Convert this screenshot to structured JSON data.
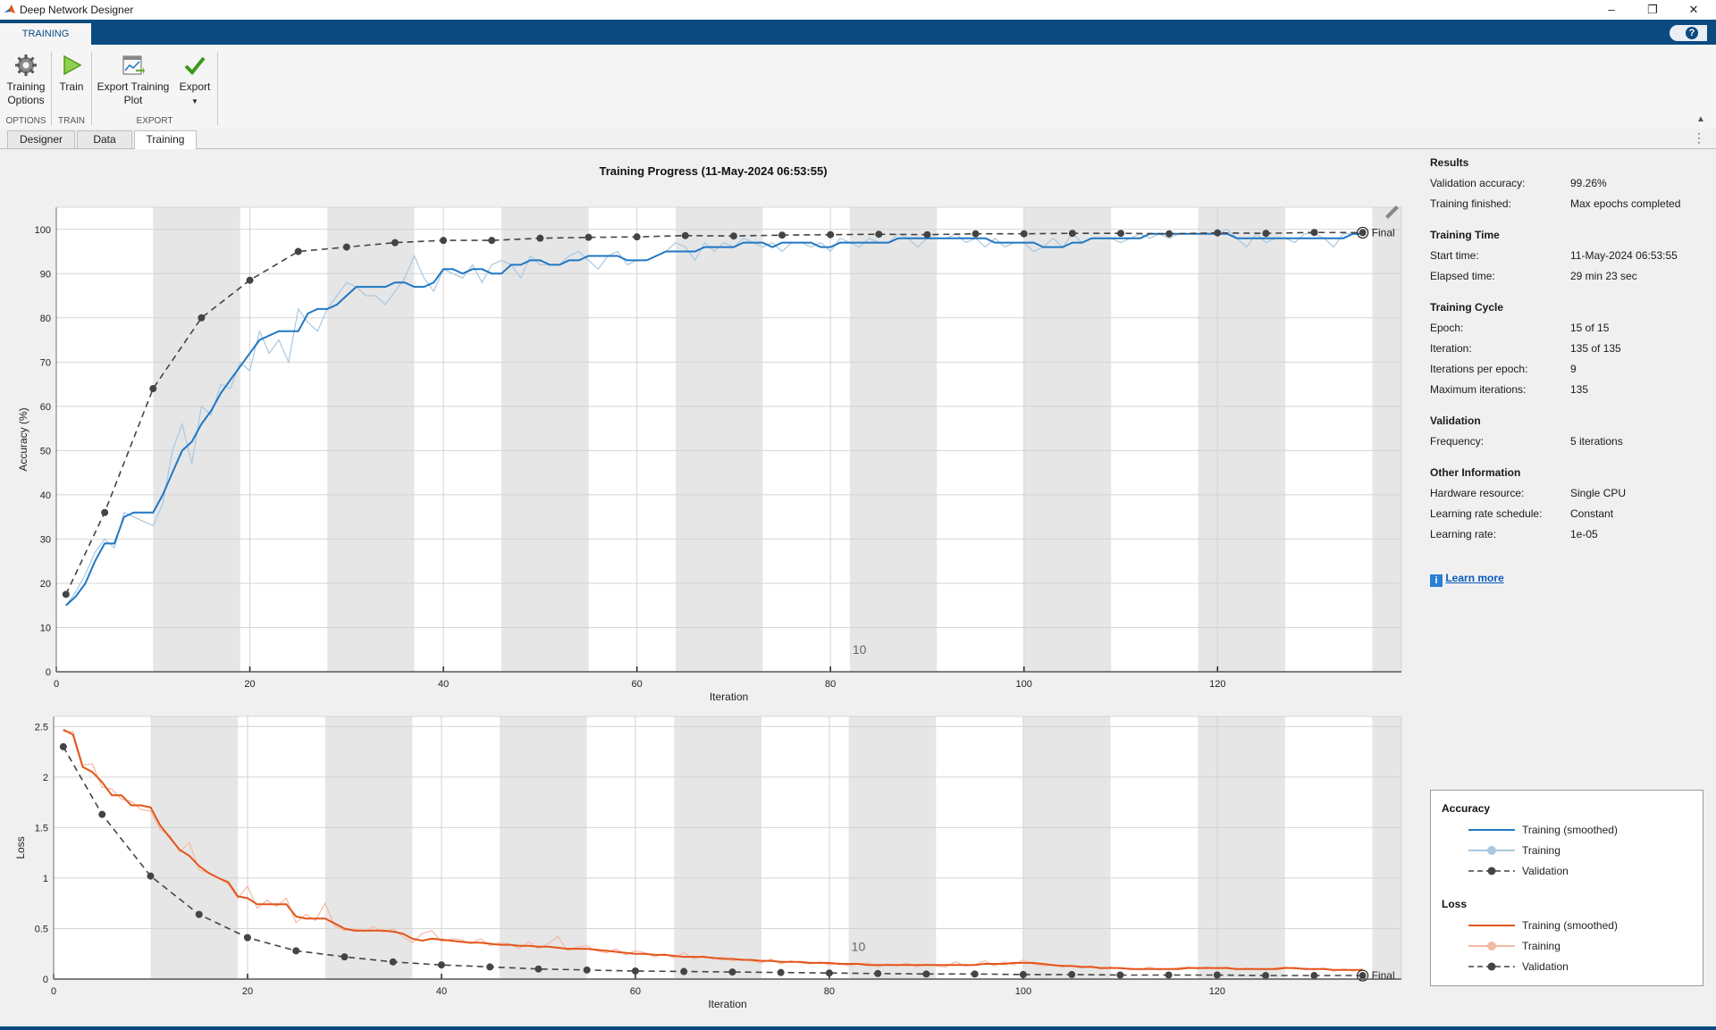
{
  "window": {
    "title": "Deep Network Designer"
  },
  "ribbon": {
    "tab": "TRAINING",
    "help": "?",
    "tools": [
      {
        "label1": "Training",
        "label2": "Options"
      },
      {
        "label1": "Train",
        "label2": ""
      },
      {
        "label1": "Export Training",
        "label2": "Plot"
      },
      {
        "label1": "Export",
        "label2": ""
      }
    ],
    "sections": [
      "OPTIONS",
      "TRAIN",
      "EXPORT"
    ]
  },
  "doc_tabs": [
    "Designer",
    "Data",
    "Training"
  ],
  "plot": {
    "title": "Training Progress (11-May-2024 06:53:55)",
    "epoch_marker": "10",
    "final_label": "Final"
  },
  "results": {
    "sections": [
      {
        "header": "Results",
        "rows": [
          {
            "label": "Validation accuracy:",
            "value": "99.26%"
          },
          {
            "label": "Training finished:",
            "value": "Max epochs completed"
          }
        ]
      },
      {
        "header": "Training Time",
        "rows": [
          {
            "label": "Start time:",
            "value": "11-May-2024 06:53:55"
          },
          {
            "label": "Elapsed time:",
            "value": "29 min 23 sec"
          }
        ]
      },
      {
        "header": "Training Cycle",
        "rows": [
          {
            "label": "Epoch:",
            "value": "15 of 15"
          },
          {
            "label": "Iteration:",
            "value": "135 of 135"
          },
          {
            "label": "Iterations per epoch:",
            "value": "9"
          },
          {
            "label": "Maximum iterations:",
            "value": "135"
          }
        ]
      },
      {
        "header": "Validation",
        "rows": [
          {
            "label": "Frequency:",
            "value": "5 iterations"
          }
        ]
      },
      {
        "header": "Other Information",
        "rows": [
          {
            "label": "Hardware resource:",
            "value": "Single CPU"
          },
          {
            "label": "Learning rate schedule:",
            "value": "Constant"
          },
          {
            "label": "Learning rate:",
            "value": "1e-05"
          }
        ]
      }
    ],
    "learn_more": "Learn more"
  },
  "legend": {
    "groups": [
      {
        "title": "Accuracy",
        "items": [
          "Training (smoothed)",
          "Training",
          "Validation"
        ]
      },
      {
        "title": "Loss",
        "items": [
          "Training (smoothed)",
          "Training",
          "Validation"
        ]
      }
    ]
  },
  "colors": {
    "accuracy_smoothed": "#1f77c4",
    "accuracy_raw": "#a9c8e0",
    "loss_smoothed": "#e4541a",
    "loss_raw": "#f2b9a4",
    "validation": "#444444",
    "epoch_band": "#e6e6e6",
    "ribbon": "#0a4a80"
  },
  "chart_data": [
    {
      "type": "line",
      "xlabel": "Iteration",
      "ylabel": "Accuracy (%)",
      "xlim": [
        0,
        139
      ],
      "ylim": [
        0,
        105
      ],
      "xticks": [
        0,
        20,
        40,
        60,
        80,
        100,
        120
      ],
      "yticks": [
        0,
        10,
        20,
        30,
        40,
        50,
        60,
        70,
        80,
        90,
        100
      ],
      "grid": true,
      "epoch_length": 9,
      "series": [
        {
          "name": "Training (smoothed)",
          "x_start": 1,
          "step": 1,
          "values": [
            15,
            17,
            20,
            25,
            29,
            29,
            35,
            36,
            36,
            36,
            40,
            45,
            50,
            52,
            56,
            59,
            63,
            66,
            69,
            72,
            75,
            76,
            77,
            77,
            77,
            81,
            82,
            82,
            83,
            85,
            87,
            87,
            87,
            87,
            88,
            88,
            87,
            87,
            88,
            91,
            91,
            90,
            91,
            91,
            90,
            90,
            92,
            92,
            93,
            93,
            92,
            92,
            93,
            93,
            94,
            94,
            94,
            94,
            93,
            93,
            93,
            94,
            95,
            95,
            95,
            95,
            96,
            96,
            96,
            96,
            97,
            97,
            97,
            96,
            97,
            97,
            97,
            97,
            96,
            96,
            97,
            97,
            97,
            97,
            97,
            97,
            98,
            98,
            98,
            98,
            98,
            98,
            98,
            98,
            98,
            98,
            97,
            97,
            97,
            97,
            97,
            96,
            96,
            96,
            97,
            97,
            98,
            98,
            98,
            98,
            98,
            98,
            99,
            99,
            99,
            99,
            99,
            99,
            99,
            99,
            99,
            98,
            98,
            98,
            98,
            98,
            98,
            98,
            98,
            98,
            98,
            98,
            98,
            99,
            99
          ]
        },
        {
          "name": "Training",
          "x_start": 1,
          "step": 1,
          "values": [
            15,
            18,
            22,
            27,
            30,
            28,
            36,
            35,
            34,
            33,
            38,
            50,
            56,
            47,
            60,
            58,
            65,
            64,
            70,
            68,
            77,
            72,
            75,
            70,
            82,
            79,
            77,
            82,
            85,
            88,
            87,
            85,
            85,
            83,
            86,
            89,
            94,
            89,
            86,
            91,
            90,
            89,
            92,
            88,
            92,
            93,
            92,
            89,
            94,
            92,
            92,
            92,
            94,
            95,
            93,
            91,
            94,
            95,
            92,
            93,
            93,
            94,
            95,
            97,
            96,
            93,
            97,
            95,
            97,
            96,
            98,
            97,
            96,
            97,
            95,
            97,
            97,
            96,
            97,
            95,
            98,
            97,
            96,
            98,
            97,
            97,
            99,
            98,
            96,
            98,
            98,
            98,
            99,
            97,
            98,
            96,
            98,
            96,
            97,
            97,
            95,
            96,
            98,
            96,
            99,
            97,
            98,
            98,
            98,
            97,
            98,
            99,
            98,
            99,
            98,
            99,
            99,
            99,
            99,
            99,
            100,
            98,
            96,
            99,
            97,
            98,
            98,
            97,
            99,
            99,
            98,
            96,
            99,
            99,
            99
          ]
        },
        {
          "name": "Validation",
          "x": [
            1,
            5,
            10,
            15,
            20,
            25,
            30,
            35,
            40,
            45,
            50,
            55,
            60,
            65,
            70,
            75,
            80,
            85,
            90,
            95,
            100,
            105,
            110,
            115,
            120,
            125,
            130,
            135
          ],
          "values": [
            17.5,
            36,
            64,
            80,
            88.5,
            95,
            96,
            97,
            97.5,
            97.5,
            98,
            98.2,
            98.3,
            98.6,
            98.5,
            98.7,
            98.8,
            98.9,
            98.8,
            99,
            99,
            99.1,
            99.1,
            99,
            99.2,
            99.1,
            99.3,
            99.26
          ]
        }
      ]
    },
    {
      "type": "line",
      "xlabel": "Iteration",
      "ylabel": "Loss",
      "xlim": [
        0,
        139
      ],
      "ylim": [
        0,
        2.6
      ],
      "xticks": [
        0,
        20,
        40,
        60,
        80,
        100,
        120
      ],
      "yticks": [
        0,
        0.5,
        1,
        1.5,
        2,
        2.5
      ],
      "grid": true,
      "epoch_length": 9,
      "series": [
        {
          "name": "Training (smoothed)",
          "x_start": 1,
          "step": 1,
          "values": [
            2.47,
            2.42,
            2.1,
            2.05,
            1.95,
            1.82,
            1.82,
            1.72,
            1.72,
            1.7,
            1.52,
            1.4,
            1.28,
            1.22,
            1.12,
            1.05,
            1.0,
            0.96,
            0.82,
            0.8,
            0.74,
            0.74,
            0.74,
            0.74,
            0.62,
            0.6,
            0.6,
            0.6,
            0.55,
            0.5,
            0.48,
            0.48,
            0.48,
            0.48,
            0.47,
            0.45,
            0.4,
            0.38,
            0.4,
            0.39,
            0.38,
            0.37,
            0.36,
            0.36,
            0.35,
            0.34,
            0.34,
            0.33,
            0.33,
            0.32,
            0.32,
            0.31,
            0.3,
            0.3,
            0.3,
            0.29,
            0.28,
            0.27,
            0.26,
            0.25,
            0.25,
            0.24,
            0.24,
            0.23,
            0.22,
            0.22,
            0.22,
            0.21,
            0.2,
            0.2,
            0.19,
            0.19,
            0.18,
            0.18,
            0.17,
            0.17,
            0.17,
            0.16,
            0.16,
            0.16,
            0.15,
            0.15,
            0.15,
            0.14,
            0.14,
            0.14,
            0.14,
            0.14,
            0.14,
            0.14,
            0.14,
            0.14,
            0.14,
            0.14,
            0.14,
            0.15,
            0.15,
            0.15,
            0.16,
            0.16,
            0.16,
            0.15,
            0.14,
            0.13,
            0.13,
            0.12,
            0.12,
            0.11,
            0.11,
            0.11,
            0.1,
            0.1,
            0.1,
            0.1,
            0.1,
            0.1,
            0.11,
            0.11,
            0.11,
            0.11,
            0.11,
            0.1,
            0.1,
            0.1,
            0.1,
            0.1,
            0.11,
            0.11,
            0.1,
            0.1,
            0.1,
            0.09,
            0.09,
            0.09,
            0.09
          ]
        },
        {
          "name": "Training",
          "x_start": 1,
          "step": 1,
          "values": [
            2.45,
            2.45,
            2.12,
            2.13,
            1.9,
            1.88,
            1.78,
            1.76,
            1.68,
            1.66,
            1.48,
            1.42,
            1.26,
            1.35,
            1.08,
            1.05,
            1.0,
            0.94,
            0.8,
            0.92,
            0.7,
            0.78,
            0.72,
            0.8,
            0.56,
            0.64,
            0.58,
            0.75,
            0.52,
            0.48,
            0.5,
            0.47,
            0.52,
            0.46,
            0.5,
            0.42,
            0.36,
            0.45,
            0.48,
            0.37,
            0.4,
            0.39,
            0.35,
            0.4,
            0.33,
            0.36,
            0.35,
            0.3,
            0.37,
            0.3,
            0.35,
            0.42,
            0.28,
            0.32,
            0.33,
            0.28,
            0.26,
            0.3,
            0.24,
            0.28,
            0.26,
            0.22,
            0.25,
            0.21,
            0.26,
            0.2,
            0.23,
            0.2,
            0.22,
            0.18,
            0.2,
            0.18,
            0.16,
            0.2,
            0.15,
            0.18,
            0.16,
            0.15,
            0.17,
            0.14,
            0.16,
            0.13,
            0.15,
            0.16,
            0.12,
            0.15,
            0.13,
            0.16,
            0.12,
            0.15,
            0.13,
            0.12,
            0.17,
            0.13,
            0.14,
            0.18,
            0.13,
            0.17,
            0.14,
            0.19,
            0.15,
            0.13,
            0.14,
            0.12,
            0.13,
            0.11,
            0.13,
            0.1,
            0.12,
            0.1,
            0.11,
            0.09,
            0.12,
            0.09,
            0.1,
            0.11,
            0.12,
            0.1,
            0.12,
            0.1,
            0.12,
            0.09,
            0.11,
            0.1,
            0.09,
            0.11,
            0.12,
            0.1,
            0.11,
            0.09,
            0.11,
            0.08,
            0.1,
            0.08,
            0.1
          ]
        },
        {
          "name": "Validation",
          "x": [
            1,
            5,
            10,
            15,
            20,
            25,
            30,
            35,
            40,
            45,
            50,
            55,
            60,
            65,
            70,
            75,
            80,
            85,
            90,
            95,
            100,
            105,
            110,
            115,
            120,
            125,
            130,
            135
          ],
          "values": [
            2.3,
            1.63,
            1.02,
            0.64,
            0.41,
            0.28,
            0.22,
            0.17,
            0.14,
            0.12,
            0.1,
            0.09,
            0.08,
            0.075,
            0.07,
            0.065,
            0.06,
            0.055,
            0.05,
            0.05,
            0.045,
            0.045,
            0.04,
            0.04,
            0.04,
            0.035,
            0.035,
            0.035
          ]
        }
      ]
    }
  ]
}
